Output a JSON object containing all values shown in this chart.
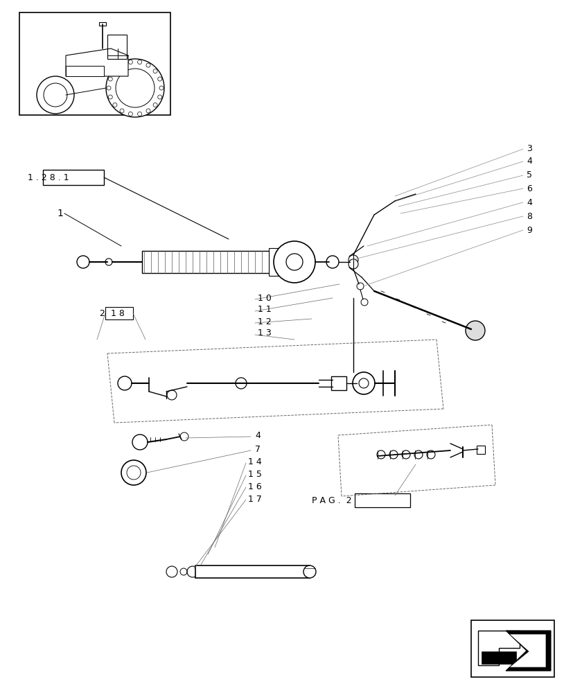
{
  "bg_color": "#ffffff",
  "lc": "#000000",
  "fig_width": 8.28,
  "fig_height": 10.0,
  "dpi": 100
}
